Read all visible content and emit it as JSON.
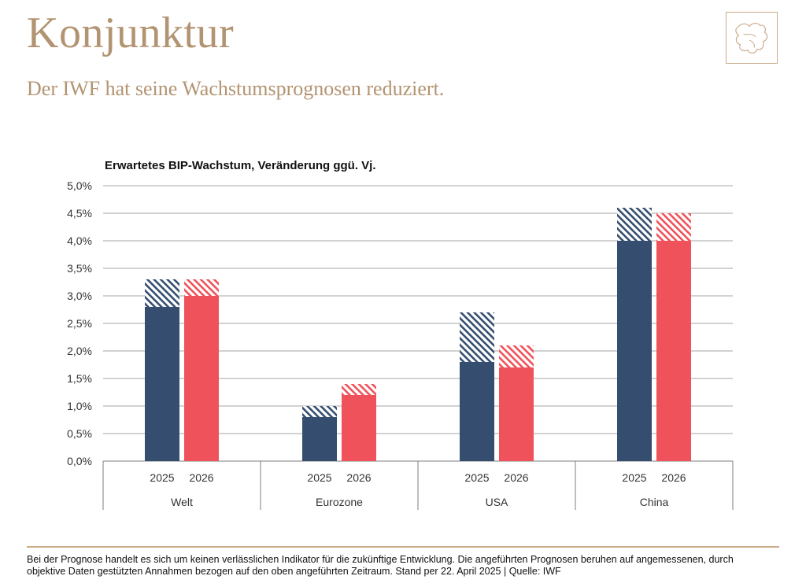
{
  "header": {
    "title": "Konjunktur",
    "subtitle": "Der IWF hat seine Wachstumsprognosen reduziert."
  },
  "logo": {
    "icon": "leaf-map-icon",
    "color": "#c9ab8a"
  },
  "colors": {
    "navy": "#354e70",
    "red": "#ef525a",
    "grid": "#a6a6a6",
    "axis_text": "#333333"
  },
  "footer": {
    "line1": "Bei der Prognose handelt es sich um keinen verlässlichen Indikator für die zukünftige Entwicklung. Die angeführten Prognosen beruhen auf angemessenen, durch",
    "line2": "objektive Daten gestützten Annahmen bezogen auf den oben angeführten Zeitraum. Stand per 22. April 2025 | Quelle: IWF"
  },
  "chart_data": {
    "type": "bar",
    "title": "Erwartetes BIP-Wachstum, Veränderung ggü. Vj.",
    "ylim": [
      0,
      5
    ],
    "yticks": [
      "0,0%",
      "0,5%",
      "1,0%",
      "1,5%",
      "2,0%",
      "2,5%",
      "3,0%",
      "3,5%",
      "4,0%",
      "4,5%",
      "5,0%"
    ],
    "grid": true,
    "stacked": true,
    "groups": [
      {
        "name": "Welt",
        "bars": [
          {
            "year": "2025",
            "value": 2.8,
            "reduction": 0.5,
            "previous": 3.3
          },
          {
            "year": "2026",
            "value": 3.0,
            "reduction": 0.3,
            "previous": 3.3
          }
        ]
      },
      {
        "name": "Eurozone",
        "bars": [
          {
            "year": "2025",
            "value": 0.8,
            "reduction": 0.2,
            "previous": 1.0
          },
          {
            "year": "2026",
            "value": 1.2,
            "reduction": 0.2,
            "previous": 1.4
          }
        ]
      },
      {
        "name": "USA",
        "bars": [
          {
            "year": "2025",
            "value": 1.8,
            "reduction": 0.9,
            "previous": 2.7
          },
          {
            "year": "2026",
            "value": 1.7,
            "reduction": 0.4,
            "previous": 2.1
          }
        ]
      },
      {
        "name": "China",
        "bars": [
          {
            "year": "2025",
            "value": 4.0,
            "reduction": 0.6,
            "previous": 4.6
          },
          {
            "year": "2026",
            "value": 4.0,
            "reduction": 0.5,
            "previous": 4.5
          }
        ]
      }
    ]
  }
}
